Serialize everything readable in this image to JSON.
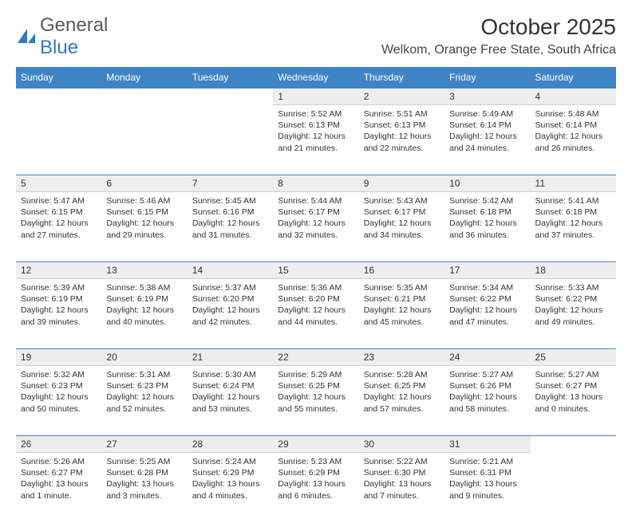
{
  "brand": {
    "text1": "General",
    "text2": "Blue",
    "logo_color": "#2f7ac0"
  },
  "title": "October 2025",
  "location": "Welkom, Orange Free State, South Africa",
  "colors": {
    "header_bg": "#3d85c6",
    "daynum_bg": "#eeeeee",
    "rule": "#3d85c6"
  },
  "weekdays": [
    "Sunday",
    "Monday",
    "Tuesday",
    "Wednesday",
    "Thursday",
    "Friday",
    "Saturday"
  ],
  "weeks": [
    {
      "nums": [
        "",
        "",
        "",
        "1",
        "2",
        "3",
        "4"
      ],
      "cells": [
        null,
        null,
        null,
        {
          "sr": "5:52 AM",
          "ss": "6:13 PM",
          "dl": "12 hours and 21 minutes."
        },
        {
          "sr": "5:51 AM",
          "ss": "6:13 PM",
          "dl": "12 hours and 22 minutes."
        },
        {
          "sr": "5:49 AM",
          "ss": "6:14 PM",
          "dl": "12 hours and 24 minutes."
        },
        {
          "sr": "5:48 AM",
          "ss": "6:14 PM",
          "dl": "12 hours and 26 minutes."
        }
      ]
    },
    {
      "nums": [
        "5",
        "6",
        "7",
        "8",
        "9",
        "10",
        "11"
      ],
      "cells": [
        {
          "sr": "5:47 AM",
          "ss": "6:15 PM",
          "dl": "12 hours and 27 minutes."
        },
        {
          "sr": "5:46 AM",
          "ss": "6:15 PM",
          "dl": "12 hours and 29 minutes."
        },
        {
          "sr": "5:45 AM",
          "ss": "6:16 PM",
          "dl": "12 hours and 31 minutes."
        },
        {
          "sr": "5:44 AM",
          "ss": "6:17 PM",
          "dl": "12 hours and 32 minutes."
        },
        {
          "sr": "5:43 AM",
          "ss": "6:17 PM",
          "dl": "12 hours and 34 minutes."
        },
        {
          "sr": "5:42 AM",
          "ss": "6:18 PM",
          "dl": "12 hours and 36 minutes."
        },
        {
          "sr": "5:41 AM",
          "ss": "6:18 PM",
          "dl": "12 hours and 37 minutes."
        }
      ]
    },
    {
      "nums": [
        "12",
        "13",
        "14",
        "15",
        "16",
        "17",
        "18"
      ],
      "cells": [
        {
          "sr": "5:39 AM",
          "ss": "6:19 PM",
          "dl": "12 hours and 39 minutes."
        },
        {
          "sr": "5:38 AM",
          "ss": "6:19 PM",
          "dl": "12 hours and 40 minutes."
        },
        {
          "sr": "5:37 AM",
          "ss": "6:20 PM",
          "dl": "12 hours and 42 minutes."
        },
        {
          "sr": "5:36 AM",
          "ss": "6:20 PM",
          "dl": "12 hours and 44 minutes."
        },
        {
          "sr": "5:35 AM",
          "ss": "6:21 PM",
          "dl": "12 hours and 45 minutes."
        },
        {
          "sr": "5:34 AM",
          "ss": "6:22 PM",
          "dl": "12 hours and 47 minutes."
        },
        {
          "sr": "5:33 AM",
          "ss": "6:22 PM",
          "dl": "12 hours and 49 minutes."
        }
      ]
    },
    {
      "nums": [
        "19",
        "20",
        "21",
        "22",
        "23",
        "24",
        "25"
      ],
      "cells": [
        {
          "sr": "5:32 AM",
          "ss": "6:23 PM",
          "dl": "12 hours and 50 minutes."
        },
        {
          "sr": "5:31 AM",
          "ss": "6:23 PM",
          "dl": "12 hours and 52 minutes."
        },
        {
          "sr": "5:30 AM",
          "ss": "6:24 PM",
          "dl": "12 hours and 53 minutes."
        },
        {
          "sr": "5:29 AM",
          "ss": "6:25 PM",
          "dl": "12 hours and 55 minutes."
        },
        {
          "sr": "5:28 AM",
          "ss": "6:25 PM",
          "dl": "12 hours and 57 minutes."
        },
        {
          "sr": "5:27 AM",
          "ss": "6:26 PM",
          "dl": "12 hours and 58 minutes."
        },
        {
          "sr": "5:27 AM",
          "ss": "6:27 PM",
          "dl": "13 hours and 0 minutes."
        }
      ]
    },
    {
      "nums": [
        "26",
        "27",
        "28",
        "29",
        "30",
        "31",
        ""
      ],
      "cells": [
        {
          "sr": "5:26 AM",
          "ss": "6:27 PM",
          "dl": "13 hours and 1 minute."
        },
        {
          "sr": "5:25 AM",
          "ss": "6:28 PM",
          "dl": "13 hours and 3 minutes."
        },
        {
          "sr": "5:24 AM",
          "ss": "6:29 PM",
          "dl": "13 hours and 4 minutes."
        },
        {
          "sr": "5:23 AM",
          "ss": "6:29 PM",
          "dl": "13 hours and 6 minutes."
        },
        {
          "sr": "5:22 AM",
          "ss": "6:30 PM",
          "dl": "13 hours and 7 minutes."
        },
        {
          "sr": "5:21 AM",
          "ss": "6:31 PM",
          "dl": "13 hours and 9 minutes."
        },
        null
      ]
    }
  ],
  "labels": {
    "sunrise": "Sunrise: ",
    "sunset": "Sunset: ",
    "daylight": "Daylight: "
  }
}
